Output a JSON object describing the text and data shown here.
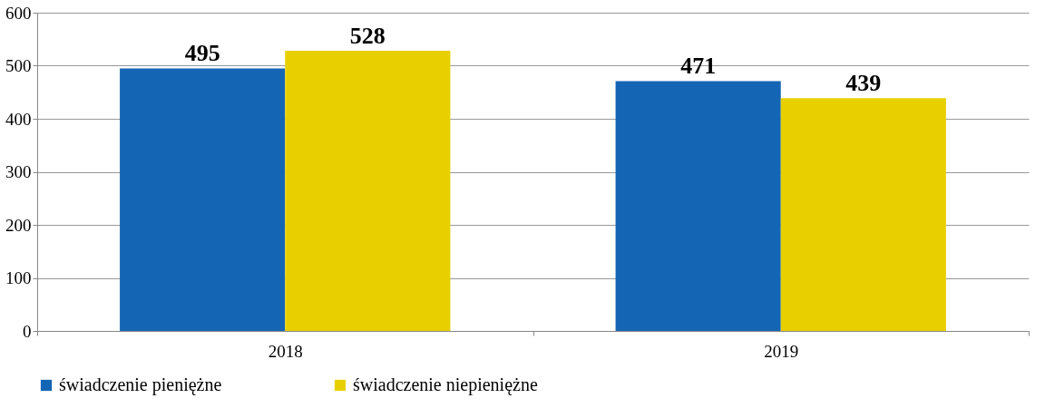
{
  "chart_data": {
    "type": "bar",
    "categories": [
      "2018",
      "2019"
    ],
    "series": [
      {
        "name": "świadczenie pieniężne",
        "color": "#1565b5",
        "values": [
          495,
          471
        ]
      },
      {
        "name": "świadczenie niepieniężne",
        "color": "#e8d000",
        "values": [
          528,
          439
        ]
      }
    ],
    "ylim": [
      0,
      600
    ],
    "yticks": [
      0,
      100,
      200,
      300,
      400,
      500,
      600
    ],
    "grid": "y",
    "legend": "bottom",
    "data_labels": true
  }
}
